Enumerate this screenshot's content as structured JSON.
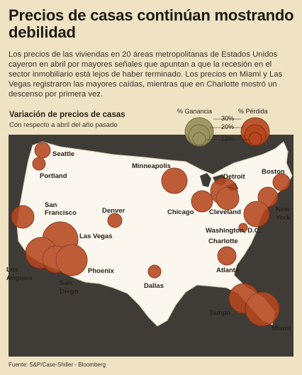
{
  "headline": "Precios de casas continúan mostrando debilidad",
  "intro": "Los precios de las viviendas en 20 áreas metropolitanas de Estados Unidos cayeron en abril por mayores señales que apuntan a que la recesión en el sector inmobiliario está lejos de haber terminado. Los precios en Miami y Las Vegas registraron las mayores caídas, mientras que en Charlotte mostró un descenso por primera vez.",
  "map_title": "Variación de precios de casas",
  "map_subtitle": "Con respecto a abril del año pasado",
  "legend": {
    "gain_label": "% Ganancia",
    "loss_label": "% Pérdida",
    "scale": [
      "30%",
      "20%",
      "10%"
    ]
  },
  "colors": {
    "background": "#efe3c4",
    "land": "#fbf7ee",
    "map_panel": "#3f3c37",
    "loss_bubble": "#b6471f",
    "gain_bubble": "#9a9560"
  },
  "cities": [
    {
      "name": "Seattle"
    },
    {
      "name": "Portland"
    },
    {
      "name": "San Francisco"
    },
    {
      "name": "Los Angeles"
    },
    {
      "name": "San Diego"
    },
    {
      "name": "Las Vegas"
    },
    {
      "name": "Phoenix"
    },
    {
      "name": "Denver"
    },
    {
      "name": "Dallas"
    },
    {
      "name": "Minneapolis"
    },
    {
      "name": "Chicago"
    },
    {
      "name": "Detroit"
    },
    {
      "name": "Cleveland"
    },
    {
      "name": "Boston"
    },
    {
      "name": "New York"
    },
    {
      "name": "Washington, D.C."
    },
    {
      "name": "Charlotte"
    },
    {
      "name": "Atlanta"
    },
    {
      "name": "Tampa"
    },
    {
      "name": "Miami"
    }
  ],
  "source": "Fuente: S&P/Case-Shiller - Bloomberg"
}
